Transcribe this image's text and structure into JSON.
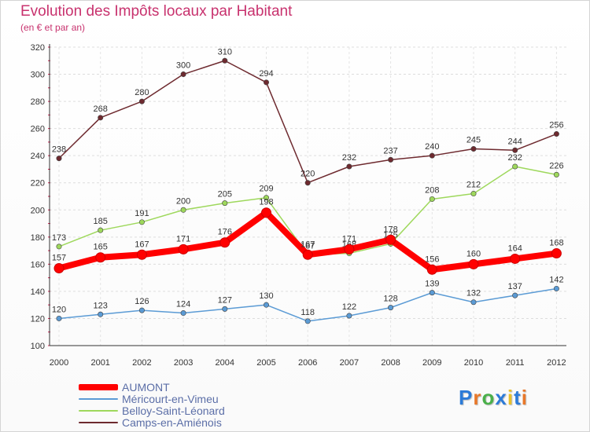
{
  "chart_data": {
    "type": "line",
    "title": "Evolution des Impôts locaux par Habitant",
    "subtitle": "(en € et par an)",
    "xlabel": "",
    "ylabel": "",
    "categories": [
      "2000",
      "2001",
      "2002",
      "2003",
      "2004",
      "2005",
      "2006",
      "2007",
      "2008",
      "2009",
      "2010",
      "2011",
      "2012"
    ],
    "ylim": [
      100,
      320
    ],
    "yticks": [
      "100",
      "120",
      "140",
      "160",
      "180",
      "200",
      "220",
      "240",
      "260",
      "280",
      "300",
      "320"
    ],
    "grid": true,
    "legend_position": "bottom-left",
    "series": [
      {
        "name": "Camps-en-Amiénois",
        "color": "#6e2a2f",
        "width": 1.5,
        "values": [
          238,
          268,
          280,
          300,
          310,
          294,
          220,
          232,
          237,
          240,
          245,
          244,
          256
        ],
        "labels": [
          "238",
          "268",
          "280",
          "300",
          "310",
          "294",
          "220",
          "232",
          "237",
          "240",
          "245",
          "244",
          "256"
        ]
      },
      {
        "name": "Belloy-Saint-Léonard",
        "color": "#9ed85c",
        "width": 1.5,
        "values": [
          173,
          185,
          191,
          200,
          205,
          209,
          167,
          168,
          175,
          208,
          212,
          232,
          226
        ],
        "labels": [
          "173",
          "185",
          "191",
          "200",
          "205",
          "209",
          "167",
          "168",
          "175",
          "208",
          "212",
          "232",
          "226"
        ]
      },
      {
        "name": "Méricourt-en-Vimeu",
        "color": "#5b9bd5",
        "width": 1.5,
        "values": [
          120,
          123,
          126,
          124,
          127,
          130,
          118,
          122,
          128,
          139,
          132,
          137,
          142
        ],
        "labels": [
          "120",
          "123",
          "126",
          "124",
          "127",
          "130",
          "118",
          "122",
          "128",
          "139",
          "132",
          "137",
          "142"
        ]
      },
      {
        "name": "AUMONT",
        "color": "#ff0000",
        "width": 8,
        "values": [
          157,
          165,
          167,
          171,
          176,
          198,
          167,
          171,
          178,
          156,
          160,
          164,
          168
        ],
        "labels": [
          "157",
          "165",
          "167",
          "171",
          "176",
          "198",
          "167",
          "171",
          "178",
          "156",
          "160",
          "164",
          "168"
        ]
      }
    ],
    "legend": [
      {
        "name": "AUMONT",
        "color": "#ff0000",
        "thickness": 8
      },
      {
        "name": "Méricourt-en-Vimeu",
        "color": "#5b9bd5",
        "thickness": 2
      },
      {
        "name": "Belloy-Saint-Léonard",
        "color": "#9ed85c",
        "thickness": 2
      },
      {
        "name": "Camps-en-Amiénois",
        "color": "#6e2a2f",
        "thickness": 2
      }
    ]
  },
  "logo": {
    "letters": [
      "P",
      "r",
      "o",
      "x",
      "i",
      "t",
      "i"
    ],
    "colors": [
      "#2c7bd8",
      "#e8782a",
      "#4ab04a",
      "#2c7bd8",
      "#e8c02a",
      "#2c7bd8",
      "#e8782a"
    ]
  }
}
